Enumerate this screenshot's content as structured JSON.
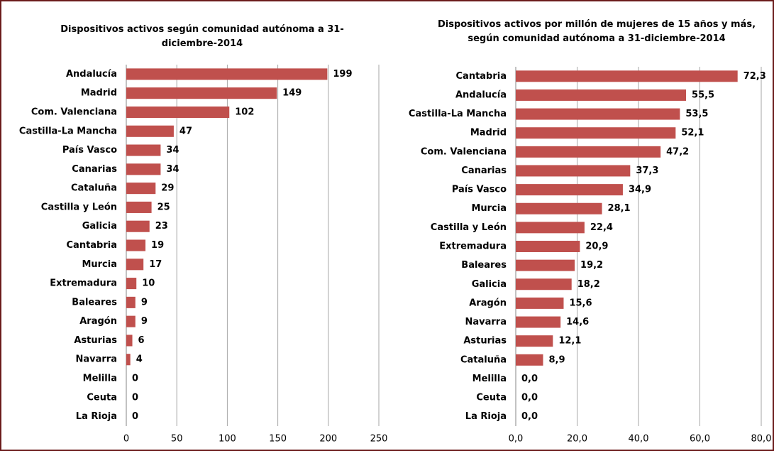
{
  "chart_data": [
    {
      "type": "bar",
      "orientation": "horizontal",
      "title": "Dispositivos activos según comunidad autónoma a 31-diciembre-2014",
      "categories": [
        "Andalucía",
        "Madrid",
        "Com. Valenciana",
        "Castilla-La Mancha",
        "País Vasco",
        "Canarias",
        "Cataluña",
        "Castilla y León",
        "Galicia",
        "Cantabria",
        "Murcia",
        "Extremadura",
        "Baleares",
        "Aragón",
        "Asturias",
        "Navarra",
        "Melilla",
        "Ceuta",
        "La Rioja"
      ],
      "values": [
        199,
        149,
        102,
        47,
        34,
        34,
        29,
        25,
        23,
        19,
        17,
        10,
        9,
        9,
        6,
        4,
        0,
        0,
        0
      ],
      "color": "#c0504d",
      "xlim": [
        0,
        250
      ],
      "xticks": [
        0,
        50,
        100,
        150,
        200,
        250
      ],
      "grid": true
    },
    {
      "type": "bar",
      "orientation": "horizontal",
      "title": "Dispositivos activos por millón de mujeres de 15 años y más, según comunidad autónoma a 31-diciembre-2014",
      "categories": [
        "Cantabria",
        "Andalucía",
        "Castilla-La Mancha",
        "Madrid",
        "Com. Valenciana",
        "Canarias",
        "País Vasco",
        "Murcia",
        "Castilla y León",
        "Extremadura",
        "Baleares",
        "Galicia",
        "Aragón",
        "Navarra",
        "Asturias",
        "Cataluña",
        "Melilla",
        "Ceuta",
        "La Rioja"
      ],
      "values": [
        72.3,
        55.5,
        53.5,
        52.1,
        47.2,
        37.3,
        34.9,
        28.1,
        22.4,
        20.9,
        19.2,
        18.2,
        15.6,
        14.6,
        12.1,
        8.9,
        0,
        0,
        0
      ],
      "value_labels": [
        "72,3",
        "55,5",
        "53,5",
        "52,1",
        "47,2",
        "37,3",
        "34,9",
        "28,1",
        "22,4",
        "20,9",
        "19,2",
        "18,2",
        "15,6",
        "14,6",
        "12,1",
        "8,9",
        "0,0",
        "0,0",
        "0,0"
      ],
      "color": "#c0504d",
      "xlim": [
        0,
        80
      ],
      "xticks": [
        {
          "value": 0,
          "label": "0,0"
        },
        {
          "value": 20,
          "label": "20,0"
        },
        {
          "value": 40,
          "label": "40,0"
        },
        {
          "value": 60,
          "label": "60,0"
        },
        {
          "value": 80,
          "label": "80,0"
        }
      ],
      "grid": true
    }
  ]
}
